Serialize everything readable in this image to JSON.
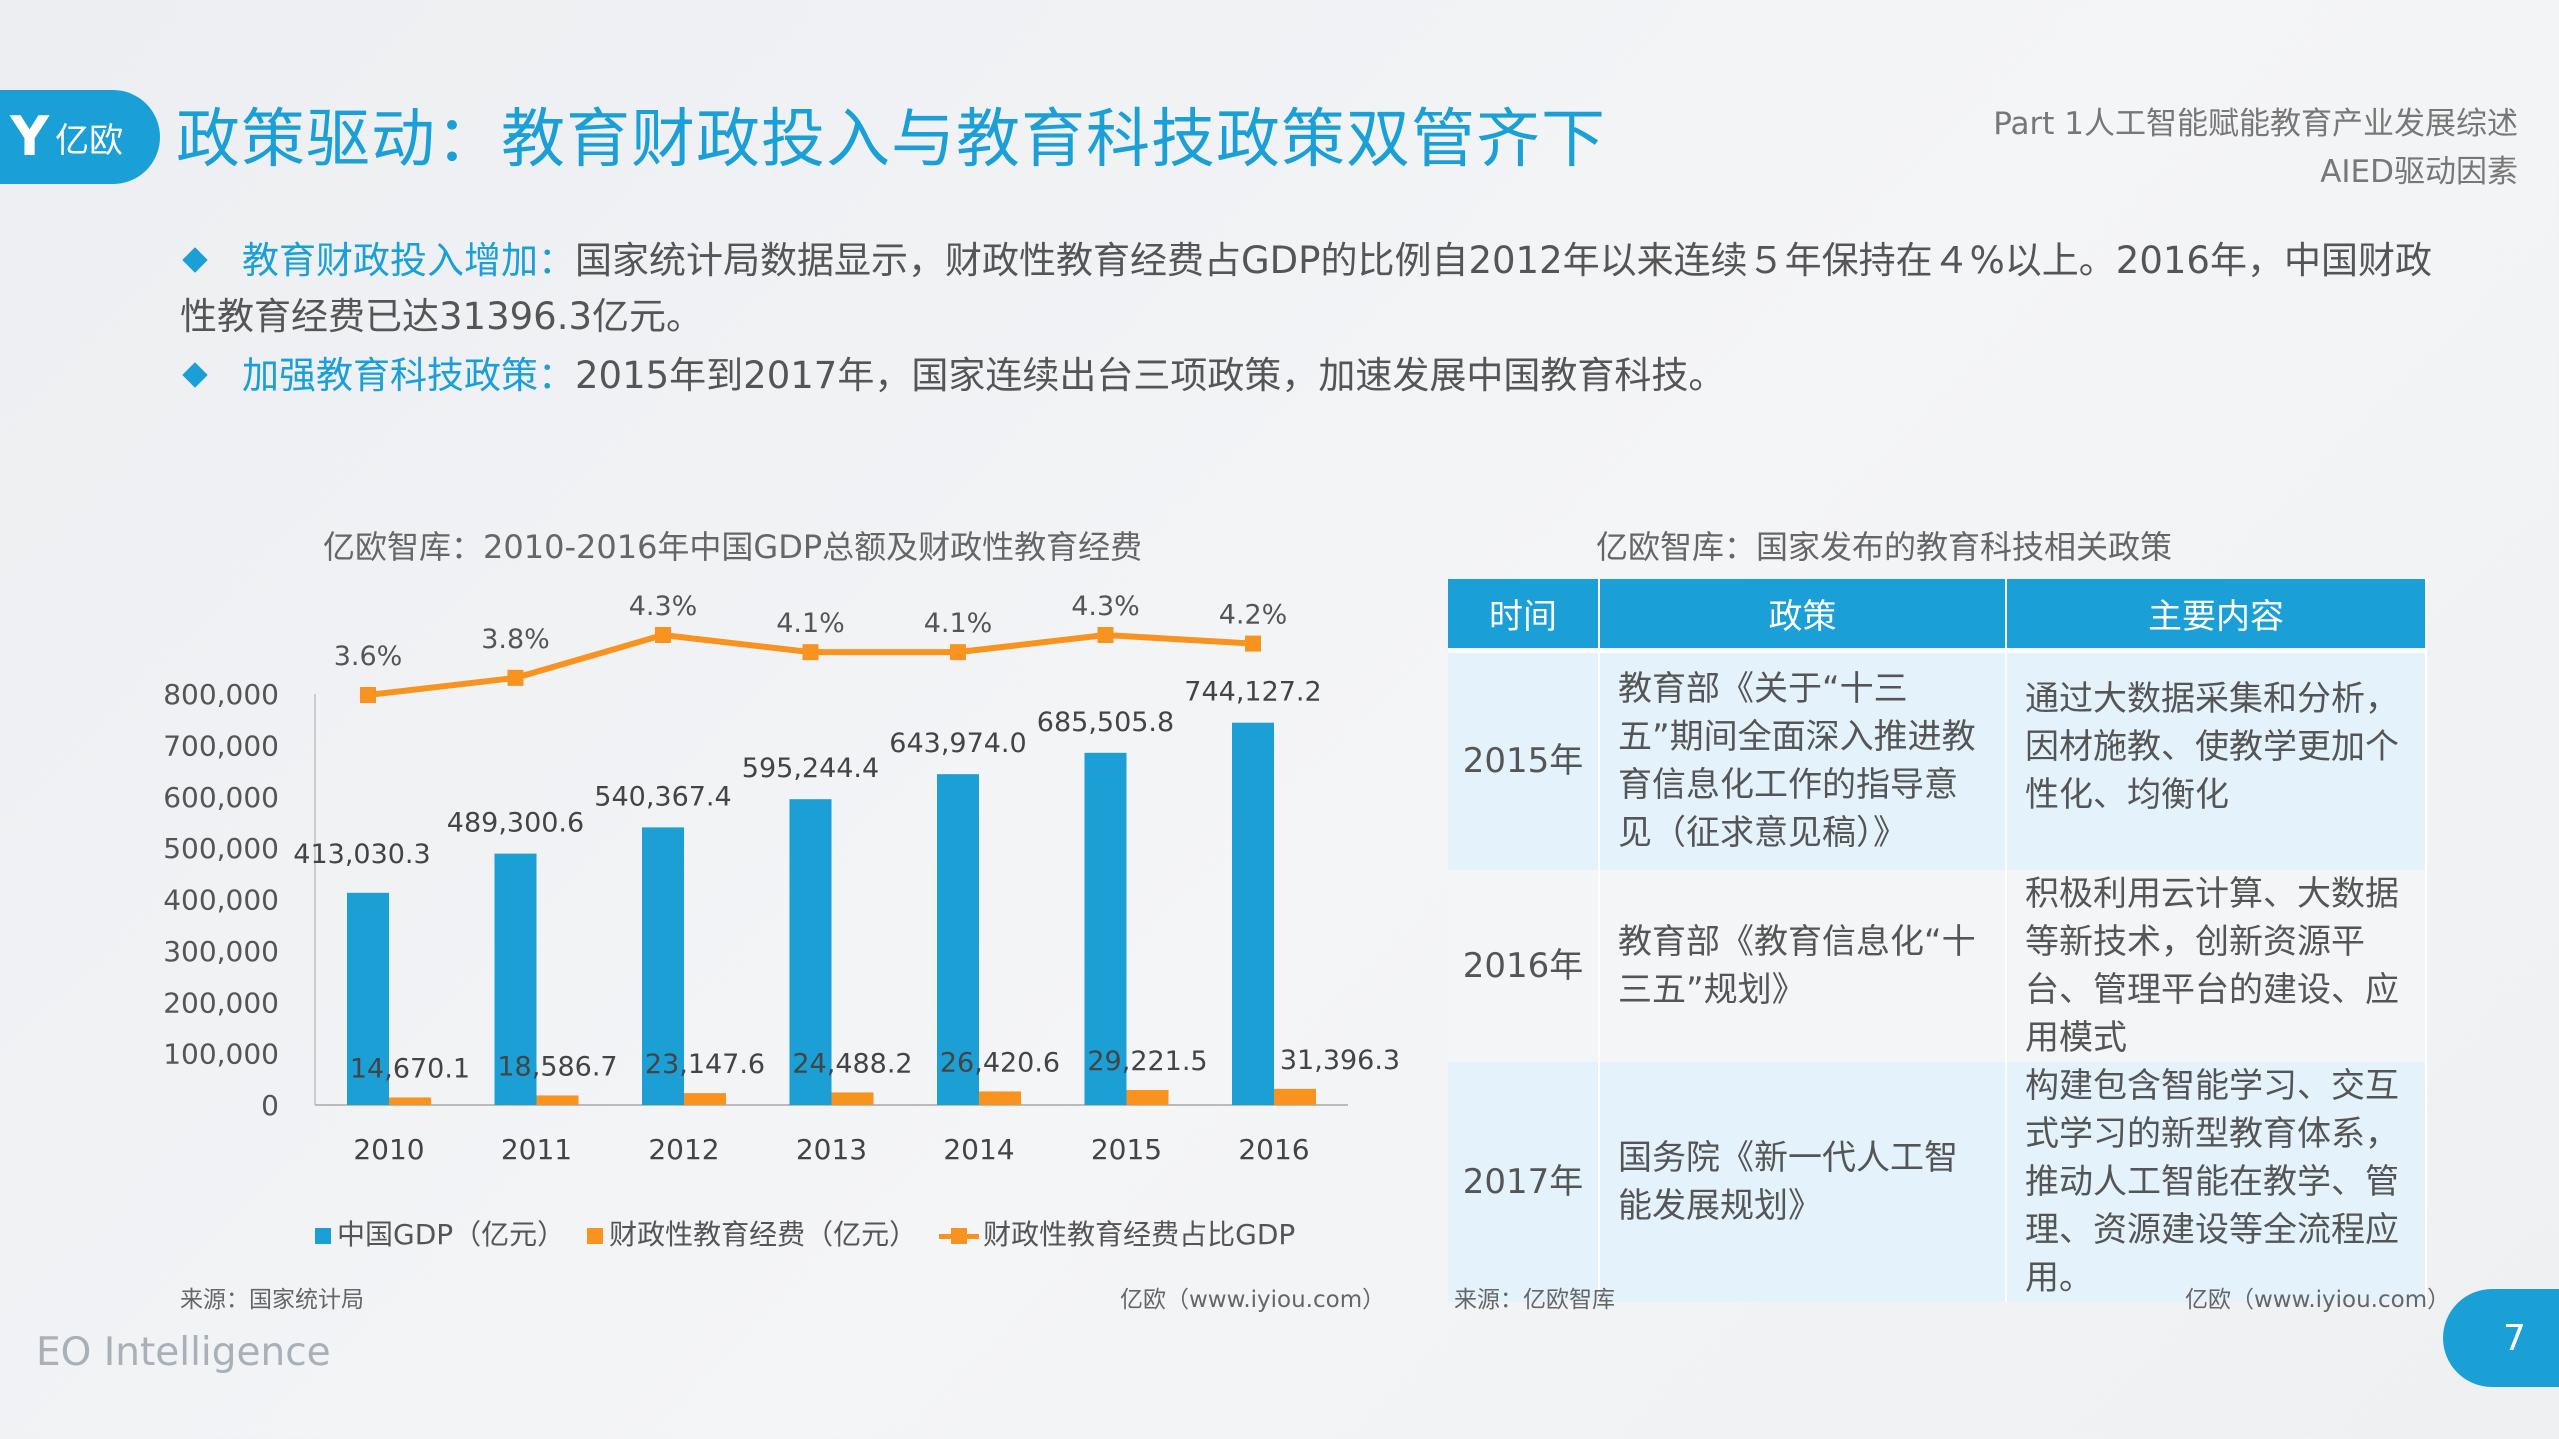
{
  "header": {
    "logo_text": "亿欧",
    "title": "政策驱动：教育财政投入与教育科技政策双管齐下",
    "part": "Part 1人工智能赋能教育产业发展综述",
    "section": "AIED驱动因素"
  },
  "bullets": [
    {
      "highlight": "教育财政投入增加：",
      "text": "国家统计局数据显示，财政性教育经费占GDP的比例自2012年以来连续５年保持在４%以上。2016年，中国财政性教育经费已达31396.3亿元。"
    },
    {
      "highlight": "加强教育科技政策：",
      "text": "2015年到2017年，国家连续出台三项政策，加速发展中国教育科技。"
    }
  ],
  "chart_data": {
    "type": "bar+line",
    "title": "亿欧智库：2010-2016年中国GDP总额及财政性教育经费",
    "categories": [
      "2010",
      "2011",
      "2012",
      "2013",
      "2014",
      "2015",
      "2016"
    ],
    "yticks": [
      "0",
      "100,000",
      "200,000",
      "300,000",
      "400,000",
      "500,000",
      "600,000",
      "700,000",
      "800,000"
    ],
    "ylim": [
      0,
      800000
    ],
    "series": [
      {
        "name": "中国GDP（亿元）",
        "type": "bar",
        "color": "#1b9fd4",
        "values": [
          413030.3,
          489300.6,
          540367.4,
          595244.4,
          643974.0,
          685505.8,
          744127.2
        ],
        "labels": [
          "413,030.3",
          "489,300.6",
          "540,367.4",
          "595,244.4",
          "643,974.0",
          "685,505.8",
          "744,127.2"
        ]
      },
      {
        "name": "财政性教育经费（亿元）",
        "type": "bar",
        "color": "#f7931e",
        "values": [
          14670.1,
          18586.7,
          23147.6,
          24488.2,
          26420.6,
          29221.5,
          31396.3
        ],
        "labels": [
          "14,670.1",
          "18,586.7",
          "23,147.6",
          "24,488.2",
          "26,420.6",
          "29,221.5",
          "31,396.3"
        ]
      },
      {
        "name": "财政性教育经费占比GDP",
        "type": "line",
        "color": "#f7931e",
        "values": [
          3.6,
          3.8,
          4.3,
          4.1,
          4.1,
          4.3,
          4.2
        ],
        "labels": [
          "3.6%",
          "3.8%",
          "4.3%",
          "4.1%",
          "4.1%",
          "4.3%",
          "4.2%"
        ]
      }
    ],
    "legend": "bottom",
    "grid": false
  },
  "chart_source": {
    "left": "来源：国家统计局",
    "right": "亿欧（www.iyiou.com）"
  },
  "table": {
    "title": "亿欧智库：国家发布的教育科技相关政策",
    "headers": [
      "时间",
      "政策",
      "主要内容"
    ],
    "rows": [
      {
        "year": "2015年",
        "policy": "教育部《关于“十三五”期间全面深入推进教育信息化工作的指导意见（征求意见稿）》",
        "content": "通过大数据采集和分析，因材施教、使教学更加个性化、均衡化"
      },
      {
        "year": "2016年",
        "policy": "教育部《教育信息化“十三五”规划》",
        "content": "积极利用云计算、大数据等新技术，创新资源平台、管理平台的建设、应用模式"
      },
      {
        "year": "2017年",
        "policy": "国务院《新一代人工智能发展规划》",
        "content": "构建包含智能学习、交互式学习的新型教育体系，推动人工智能在教学、管理、资源建设等全流程应用。"
      }
    ],
    "source_left": "来源：亿欧智库",
    "source_right": "亿欧（www.iyiou.com）"
  },
  "footer": {
    "brand": "EO Intelligence",
    "page": "7"
  },
  "colors": {
    "accent": "#1a9fd6",
    "orange": "#f7931e"
  }
}
